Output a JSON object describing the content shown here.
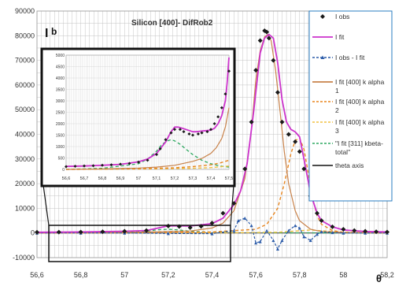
{
  "chart_data": {
    "type": "line",
    "title": "Silicon [400]- DifRob2",
    "panel_label": "b",
    "ylabel": "I",
    "xlabel": "θ",
    "xlim": [
      56.6,
      58.2
    ],
    "ylim": [
      -10000,
      90000
    ],
    "x_ticks": [
      56.6,
      56.8,
      57,
      57.2,
      57.4,
      57.6,
      57.8,
      58,
      58.2
    ],
    "x_tick_labels": [
      "56,6",
      "56,8",
      "57",
      "57,2",
      "57,4",
      "57,6",
      "57,8",
      "58",
      "58,2"
    ],
    "y_ticks": [
      -10000,
      0,
      10000,
      20000,
      30000,
      40000,
      50000,
      60000,
      70000,
      80000,
      90000
    ],
    "y_tick_labels": [
      "-10000",
      "0",
      "10000",
      "20000",
      "30000",
      "40000",
      "50000",
      "60000",
      "70000",
      "80000",
      "90000"
    ],
    "grid": true,
    "legend_position": "right",
    "legend": [
      {
        "label": "I obs",
        "color": "#1a1a1a",
        "style": "diamond"
      },
      {
        "label": "I fit",
        "color": "#cc33cc",
        "style": "line"
      },
      {
        "label": "I obs - I fit",
        "color": "#2a5aa8",
        "style": "dash-triangle"
      },
      {
        "label": "I fit [400] k alpha 1",
        "color": "#c8824a",
        "style": "line"
      },
      {
        "label": "I fit [400] k alpha 2",
        "color": "#e8851e",
        "style": "dash"
      },
      {
        "label": "I fit [400] k alpha 3",
        "color": "#f2c040",
        "style": "dash"
      },
      {
        "label": "\"I fit [311] kbeta-total\"",
        "color": "#2ea860",
        "style": "dash"
      },
      {
        "label": "theta axis",
        "color": "#333333",
        "style": "line"
      }
    ],
    "series": [
      {
        "name": "I obs",
        "x": [
          56.6,
          56.7,
          56.8,
          56.9,
          57.0,
          57.1,
          57.2,
          57.25,
          57.3,
          57.35,
          57.4,
          57.45,
          57.5,
          57.55,
          57.58,
          57.6,
          57.62,
          57.64,
          57.65,
          57.66,
          57.68,
          57.7,
          57.72,
          57.75,
          57.78,
          57.8,
          57.82,
          57.85,
          57.88,
          57.9,
          57.95,
          58.0,
          58.05,
          58.1,
          58.15,
          58.2
        ],
        "y": [
          300,
          350,
          400,
          500,
          700,
          1000,
          2800,
          2600,
          2200,
          2700,
          4000,
          8000,
          12000,
          26000,
          45000,
          66000,
          78000,
          82000,
          81500,
          79000,
          70000,
          57000,
          45000,
          40000,
          37000,
          33000,
          26000,
          15000,
          8000,
          5000,
          2500,
          1500,
          1000,
          700,
          500,
          400
        ]
      },
      {
        "name": "I fit",
        "x": [
          56.6,
          56.8,
          57.0,
          57.1,
          57.2,
          57.3,
          57.4,
          57.45,
          57.5,
          57.53,
          57.56,
          57.59,
          57.62,
          57.64,
          57.66,
          57.68,
          57.7,
          57.72,
          57.74,
          57.76,
          57.78,
          57.8,
          57.82,
          57.85,
          57.88,
          57.9,
          57.95,
          58.0,
          58.1,
          58.2
        ],
        "y": [
          300,
          400,
          700,
          1000,
          2900,
          2800,
          3800,
          6000,
          11500,
          17000,
          28000,
          49000,
          73000,
          79000,
          80500,
          79000,
          69000,
          54000,
          45000,
          42000,
          41000,
          39000,
          30000,
          16000,
          8000,
          5000,
          2500,
          1200,
          600,
          400
        ]
      },
      {
        "name": "I obs - I fit",
        "x": [
          56.6,
          56.8,
          57.0,
          57.2,
          57.4,
          57.5,
          57.52,
          57.55,
          57.58,
          57.6,
          57.62,
          57.65,
          57.68,
          57.7,
          57.72,
          57.75,
          57.78,
          57.8,
          57.82,
          57.85,
          57.88,
          57.9,
          57.95,
          58.0,
          58.1,
          58.2
        ],
        "y": [
          0,
          0,
          0,
          -200,
          -300,
          1000,
          5000,
          6000,
          3000,
          -4000,
          -3500,
          1000,
          -3000,
          -6500,
          -3000,
          1000,
          3000,
          2000,
          -1500,
          -3000,
          -500,
          500,
          200,
          0,
          0,
          0
        ]
      },
      {
        "name": "I fit [400] k alpha 1",
        "x": [
          56.6,
          57.0,
          57.3,
          57.4,
          57.45,
          57.5,
          57.55,
          57.58,
          57.6,
          57.62,
          57.64,
          57.655,
          57.67,
          57.69,
          57.71,
          57.73,
          57.75,
          57.78,
          57.8,
          57.85,
          57.9,
          58.0,
          58.2
        ],
        "y": [
          0,
          200,
          800,
          2000,
          4000,
          9000,
          22000,
          42000,
          62000,
          74000,
          79500,
          80500,
          78000,
          66000,
          50000,
          33000,
          20000,
          9000,
          5000,
          1500,
          600,
          200,
          0
        ]
      },
      {
        "name": "I fit [400] k alpha 2",
        "x": [
          56.6,
          57.0,
          57.4,
          57.6,
          57.65,
          57.7,
          57.73,
          57.76,
          57.78,
          57.8,
          57.82,
          57.84,
          57.86,
          57.88,
          57.9,
          57.95,
          58.0,
          58.2
        ],
        "y": [
          0,
          100,
          400,
          1500,
          3500,
          10000,
          20000,
          32000,
          37500,
          38500,
          34000,
          24000,
          14000,
          7000,
          3500,
          1000,
          300,
          0
        ]
      },
      {
        "name": "I fit [400] k alpha 3",
        "x": [
          56.6,
          57.0,
          57.5,
          57.7,
          57.8,
          57.85,
          57.9,
          58.0,
          58.2
        ],
        "y": [
          0,
          50,
          100,
          300,
          900,
          1200,
          900,
          300,
          0
        ]
      },
      {
        "name": "\"I fit [311] kbeta-total\"",
        "x": [
          56.6,
          56.8,
          57.0,
          57.1,
          57.15,
          57.2,
          57.25,
          57.3,
          57.4,
          57.5,
          57.8,
          58.2
        ],
        "y": [
          0,
          80,
          300,
          700,
          1300,
          1500,
          1200,
          700,
          300,
          150,
          50,
          0
        ]
      },
      {
        "name": "theta axis",
        "x": [
          56.6,
          58.2
        ],
        "y": [
          0,
          0
        ]
      }
    ],
    "inset": {
      "xlim": [
        56.6,
        57.5
      ],
      "ylim": [
        0,
        5000
      ],
      "x_ticks": [
        56.6,
        56.7,
        56.8,
        56.9,
        57.0,
        57.1,
        57.2,
        57.3,
        57.4,
        57.5
      ],
      "x_tick_labels": [
        "56,6",
        "56,7",
        "56,8",
        "56,9",
        "57",
        "57,1",
        "57,2",
        "57,3",
        "57,4",
        "57,5"
      ],
      "y_ticks": [
        0,
        500,
        1000,
        1500,
        2000,
        2500,
        3000,
        3500,
        4000,
        4500,
        5000
      ],
      "y_tick_labels": [
        "0",
        "500",
        "1000",
        "1500",
        "2000",
        "2500",
        "3000",
        "3500",
        "4000",
        "4500",
        "5000"
      ],
      "series": [
        {
          "name": "I obs",
          "x": [
            56.6,
            56.65,
            56.7,
            56.75,
            56.8,
            56.85,
            56.9,
            56.95,
            57.0,
            57.05,
            57.1,
            57.12,
            57.15,
            57.18,
            57.2,
            57.23,
            57.25,
            57.28,
            57.3,
            57.33,
            57.35,
            57.38,
            57.4,
            57.42,
            57.44,
            57.46,
            57.48,
            57.5
          ],
          "y": [
            120,
            140,
            150,
            160,
            180,
            200,
            230,
            260,
            320,
            400,
            650,
            900,
            1300,
            1600,
            1750,
            1750,
            1650,
            1550,
            1500,
            1550,
            1600,
            1650,
            1750,
            2000,
            2300,
            2700,
            3300,
            4300
          ]
        },
        {
          "name": "I fit",
          "x": [
            56.6,
            56.7,
            56.8,
            56.9,
            57.0,
            57.05,
            57.1,
            57.15,
            57.18,
            57.2,
            57.22,
            57.25,
            57.28,
            57.3,
            57.32,
            57.35,
            57.38,
            57.4,
            57.42,
            57.44,
            57.46,
            57.48,
            57.49,
            57.5
          ],
          "y": [
            130,
            150,
            180,
            220,
            330,
            450,
            700,
            1200,
            1650,
            1850,
            1850,
            1780,
            1700,
            1650,
            1650,
            1680,
            1700,
            1720,
            1800,
            2000,
            2350,
            3000,
            3800,
            4900
          ]
        },
        {
          "name": "I fit [400] k alpha 1",
          "x": [
            56.6,
            56.8,
            57.0,
            57.1,
            57.2,
            57.3,
            57.35,
            57.4,
            57.43,
            57.46,
            57.48,
            57.5
          ],
          "y": [
            0,
            20,
            60,
            100,
            180,
            350,
            480,
            700,
            950,
            1350,
            1850,
            2700
          ]
        },
        {
          "name": "I fit [400] k alpha 2",
          "x": [
            56.6,
            57.0,
            57.2,
            57.3,
            57.4,
            57.45,
            57.5
          ],
          "y": [
            0,
            30,
            70,
            120,
            200,
            280,
            400
          ]
        },
        {
          "name": "I fit [400] k alpha 3",
          "x": [
            56.6,
            57.0,
            57.3,
            57.4,
            57.5
          ],
          "y": [
            0,
            20,
            50,
            80,
            150
          ]
        },
        {
          "name": "\"I fit [311] kbeta-total\"",
          "x": [
            56.6,
            56.8,
            57.0,
            57.05,
            57.1,
            57.13,
            57.16,
            57.18,
            57.2,
            57.23,
            57.26,
            57.3,
            57.35,
            57.4,
            57.45,
            57.5
          ],
          "y": [
            0,
            50,
            250,
            450,
            800,
            1100,
            1250,
            1300,
            1250,
            1100,
            900,
            650,
            400,
            250,
            150,
            100
          ]
        }
      ]
    }
  }
}
